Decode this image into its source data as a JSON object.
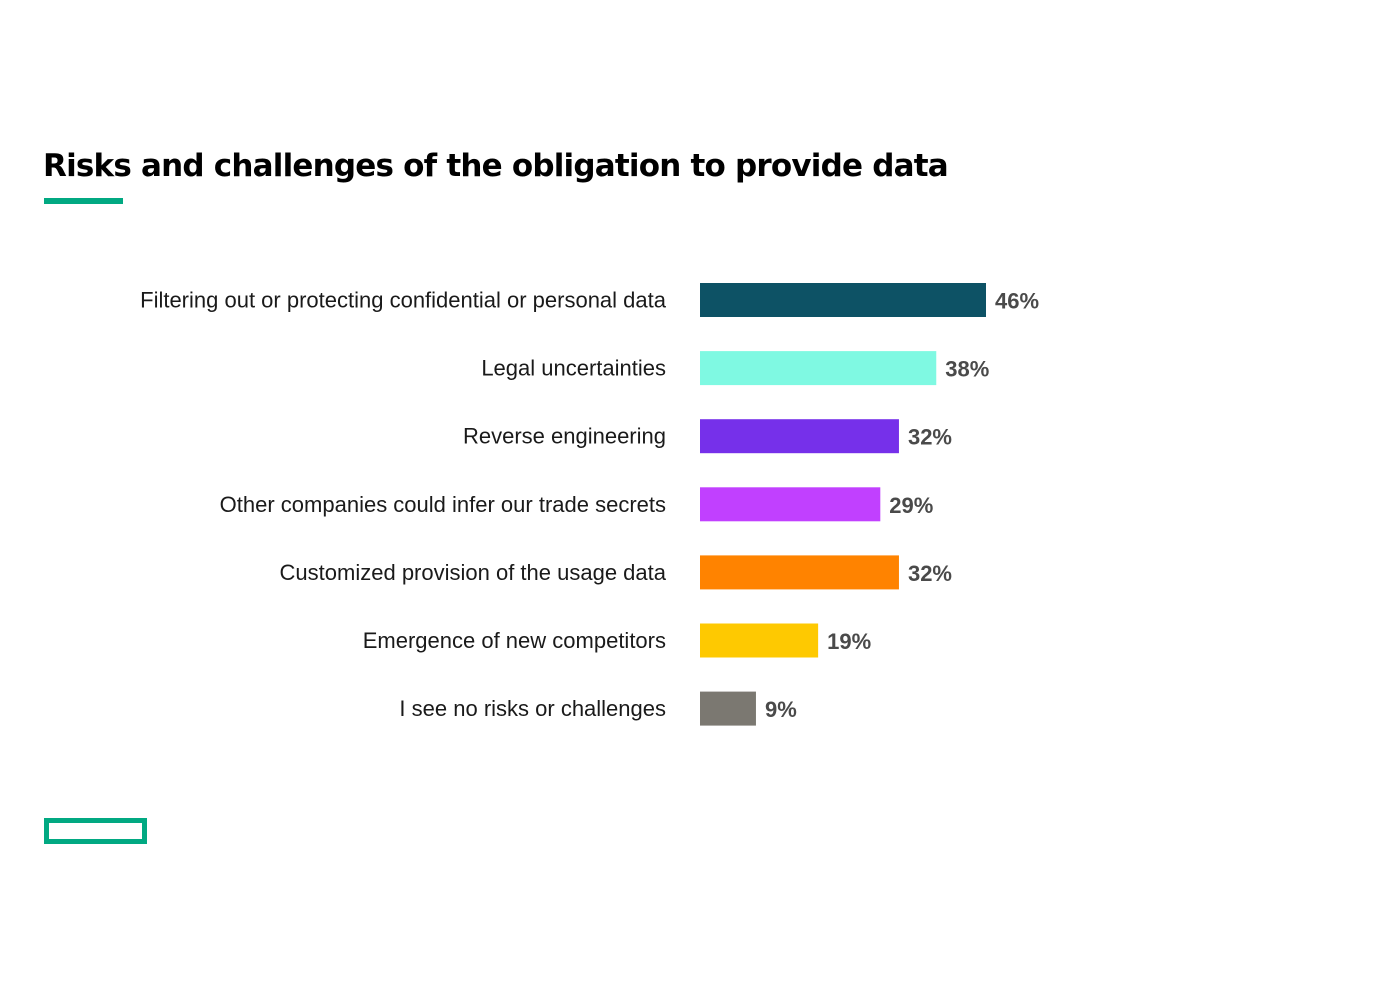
{
  "header": {
    "title": "Risks and challenges of the obligation to provide data"
  },
  "colors": {
    "accent": "#01A982",
    "category_label": "#1a1a1a",
    "value_label": "#4a4a4a"
  },
  "logo": {
    "icon": "hpe-element-rectangle-logo"
  },
  "chart_data": {
    "type": "bar",
    "orientation": "horizontal",
    "title": "Risks and challenges of the obligation to provide data",
    "categories": [
      "Filtering out or protecting confidential or personal data",
      "Legal uncertainties",
      "Reverse engineering",
      "Other companies could infer our trade secrets",
      "Customized provision of the usage data",
      "Emergence of new competitors",
      "I see no risks or challenges"
    ],
    "values": [
      46,
      38,
      32,
      29,
      32,
      19,
      9
    ],
    "value_labels": [
      "46%",
      "38%",
      "32%",
      "29%",
      "32%",
      "19%",
      "9%"
    ],
    "colors": [
      "#0D5265",
      "#7FF9E2",
      "#7630EA",
      "#C140FF",
      "#FF8300",
      "#FEC901",
      "#7B7871"
    ],
    "unit": "%",
    "xlim": [
      0,
      100
    ],
    "grid": false,
    "legend": "none"
  }
}
